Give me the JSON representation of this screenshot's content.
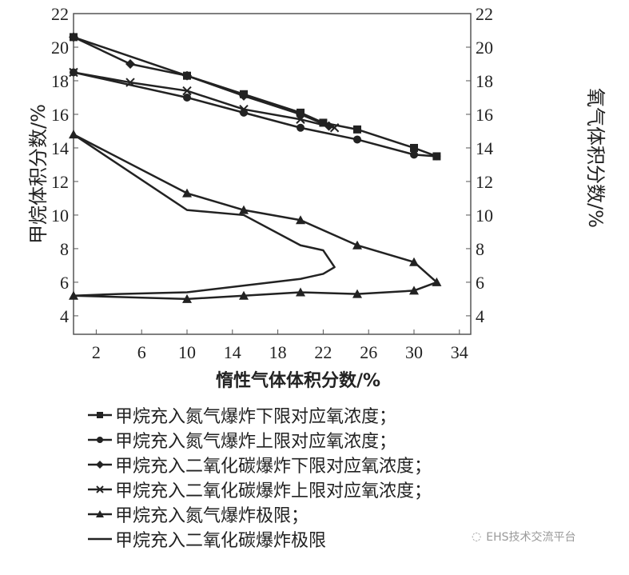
{
  "chart_data": {
    "type": "line",
    "xlabel": "惰性气体体积分数/%",
    "ylabel": "甲烷体积分数/%",
    "y2label": "氧气体积分数/%",
    "xlim": [
      0,
      35
    ],
    "ylim": [
      2.9,
      22
    ],
    "xticks": [
      2,
      6,
      10,
      14,
      18,
      22,
      26,
      30,
      34
    ],
    "yticks": [
      4,
      6,
      8,
      10,
      12,
      14,
      16,
      18,
      20,
      22
    ],
    "grid": false,
    "legend_position": "bottom",
    "series": [
      {
        "name": "甲烷充入氮气爆炸下限对应氧浓度；",
        "marker": "square",
        "axis": "right",
        "points": [
          [
            0,
            20.6
          ],
          [
            10,
            18.3
          ],
          [
            15,
            17.2
          ],
          [
            20,
            16.1
          ],
          [
            22,
            15.5
          ],
          [
            25,
            15.1
          ],
          [
            30,
            14.0
          ],
          [
            32,
            13.5
          ]
        ]
      },
      {
        "name": "甲烷充入氮气爆炸上限对应氧浓度；",
        "marker": "circle",
        "axis": "right",
        "points": [
          [
            0,
            18.5
          ],
          [
            10,
            17.0
          ],
          [
            15,
            16.1
          ],
          [
            20,
            15.2
          ],
          [
            25,
            14.5
          ],
          [
            30,
            13.6
          ],
          [
            32,
            13.5
          ]
        ]
      },
      {
        "name": "甲烷充入二氧化碳爆炸下限对应氧浓度；",
        "marker": "diamond",
        "axis": "right",
        "points": [
          [
            0,
            20.6
          ],
          [
            5,
            19.0
          ],
          [
            10,
            18.3
          ],
          [
            15,
            17.1
          ],
          [
            20,
            16.0
          ],
          [
            22.5,
            15.3
          ]
        ]
      },
      {
        "name": "甲烷充入二氧化碳爆炸上限对应氧浓度；",
        "marker": "x",
        "axis": "right",
        "points": [
          [
            0,
            18.5
          ],
          [
            5,
            17.9
          ],
          [
            10,
            17.4
          ],
          [
            15,
            16.3
          ],
          [
            20,
            15.7
          ],
          [
            23,
            15.2
          ]
        ]
      },
      {
        "name": "甲烷充入氮气爆炸极限；",
        "marker": "triangle",
        "axis": "left",
        "points": [
          [
            0,
            14.8
          ],
          [
            10,
            11.3
          ],
          [
            15,
            10.3
          ],
          [
            20,
            9.7
          ],
          [
            25,
            8.2
          ],
          [
            30,
            7.2
          ],
          [
            32,
            6.0
          ],
          [
            30,
            5.5
          ],
          [
            25,
            5.3
          ],
          [
            20,
            5.4
          ],
          [
            15,
            5.2
          ],
          [
            10,
            5.0
          ],
          [
            0,
            5.2
          ]
        ]
      },
      {
        "name": "甲烷充入二氧化碳爆炸极限",
        "marker": "none",
        "axis": "left",
        "points": [
          [
            0,
            14.8
          ],
          [
            10,
            10.3
          ],
          [
            15,
            10.0
          ],
          [
            20,
            8.2
          ],
          [
            22,
            7.9
          ],
          [
            23,
            6.9
          ],
          [
            22,
            6.5
          ],
          [
            20,
            6.2
          ],
          [
            10,
            5.4
          ],
          [
            4,
            5.3
          ],
          [
            0,
            5.2
          ]
        ]
      }
    ]
  },
  "colors": {
    "line": "#222222",
    "watermark": "#9a9a9a"
  },
  "watermark": "EHS技术交流平台"
}
